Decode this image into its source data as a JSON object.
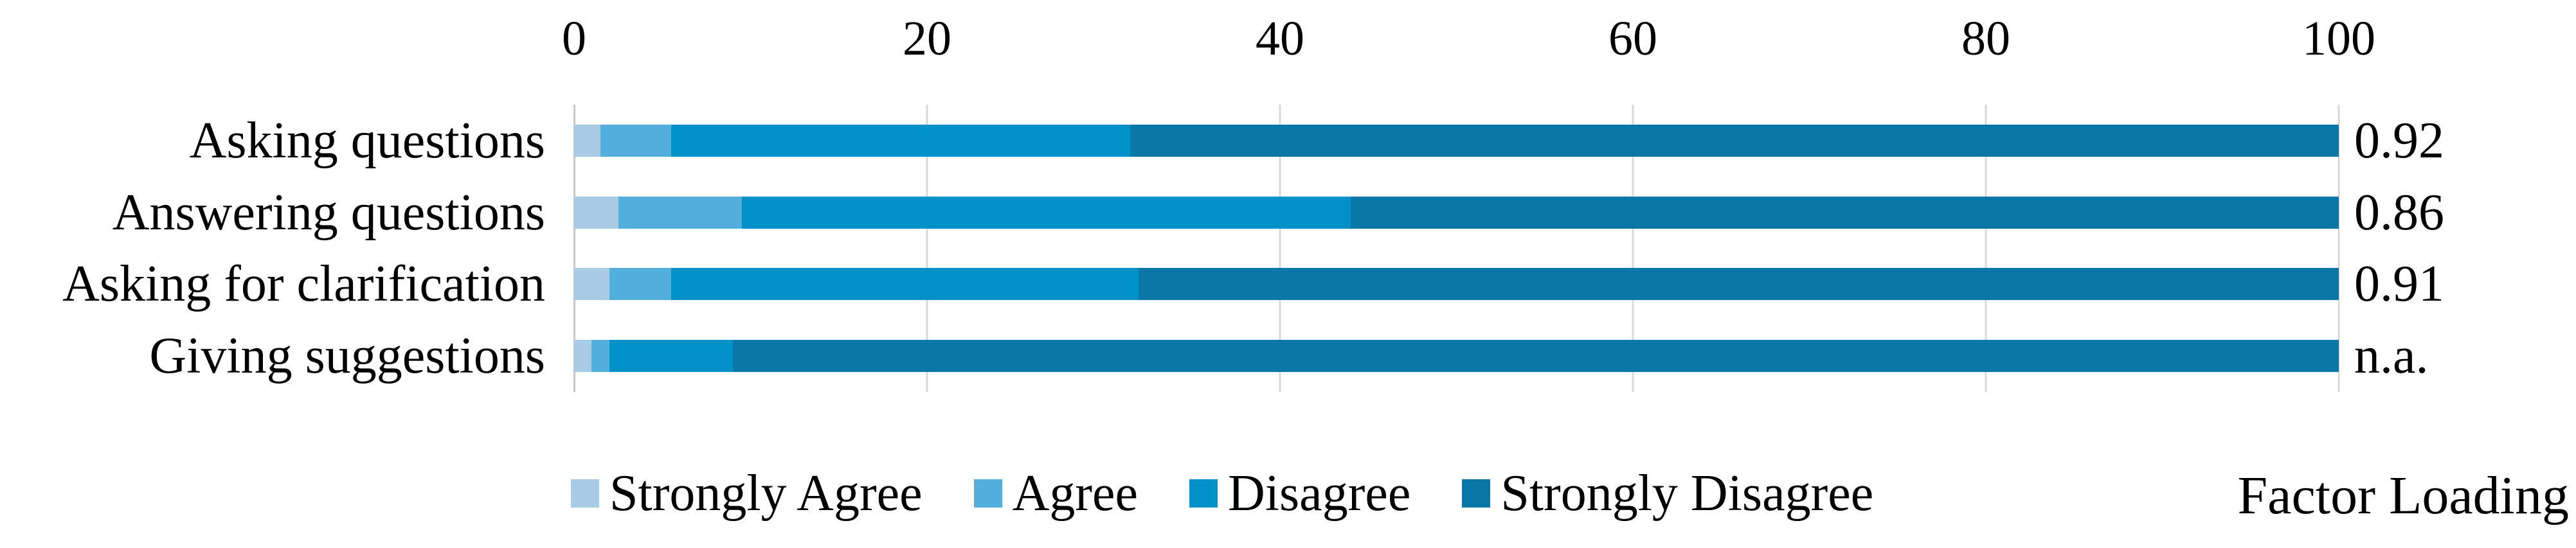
{
  "chart_data": {
    "type": "bar",
    "orientation": "horizontal",
    "stacked": true,
    "title": "",
    "categories": [
      "Asking questions",
      "Answering questions",
      "Asking for clarification",
      "Giving suggestions"
    ],
    "series": [
      {
        "name": "Strongly Agree",
        "color": "#a9cbe6",
        "values": [
          1.5,
          2.5,
          2.0,
          1.0
        ]
      },
      {
        "name": "Agree",
        "color": "#52aedb",
        "values": [
          4.0,
          7.0,
          3.5,
          1.0
        ]
      },
      {
        "name": "Disagree",
        "color": "#0091c9",
        "values": [
          26.0,
          34.5,
          26.5,
          7.0
        ]
      },
      {
        "name": "Strongly Disagree",
        "color": "#0a78a6",
        "values": [
          68.5,
          56.0,
          68.0,
          91.0
        ]
      }
    ],
    "x_axis": {
      "min": 0,
      "max": 100,
      "ticks": [
        0,
        20,
        40,
        60,
        80,
        100
      ]
    },
    "right_annotation": {
      "label": "Factor Loading",
      "values": [
        "0.92",
        "0.86",
        "0.91",
        "n.a."
      ]
    },
    "legend_position": "bottom",
    "grid": true
  },
  "colors": {
    "gridline": "#d9d9d9",
    "axis_line": "#c6c6c6",
    "text": "#000000",
    "background": "#ffffff"
  }
}
